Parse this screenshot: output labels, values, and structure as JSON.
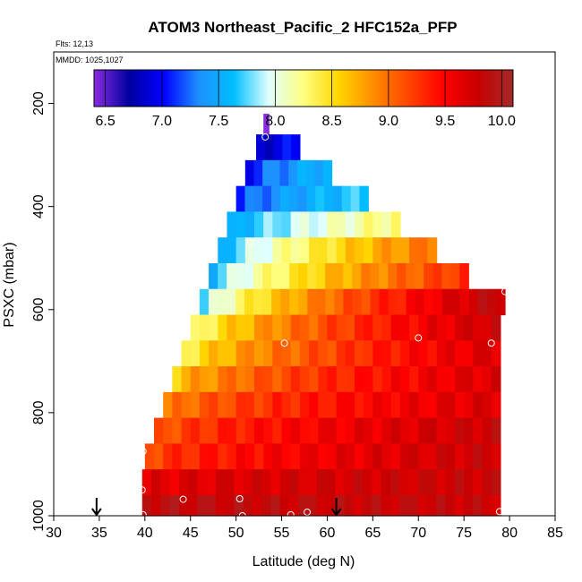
{
  "chart_data": {
    "type": "heatmap",
    "title": "ATOM3 Northeast_Pacific_2 HFC152a_PFP",
    "flights_label": "Flts: 12,13",
    "mmdd_label": "MMDD: 1025,1027",
    "xlabel": "Latitude (deg N)",
    "ylabel": "PSXC (mbar)",
    "xlim": [
      30,
      85
    ],
    "ylim": [
      1000,
      100
    ],
    "x_ticks": [
      30,
      35,
      40,
      45,
      50,
      55,
      60,
      65,
      70,
      75,
      80,
      85
    ],
    "y_ticks": [
      200,
      400,
      600,
      800,
      1000
    ],
    "colorbar": {
      "range": [
        6.4,
        10.1
      ],
      "ticks": [
        6.5,
        7.0,
        7.5,
        8.0,
        8.5,
        9.0,
        9.5,
        10.0
      ],
      "tick_labels": [
        "6.5",
        "7.0",
        "7.5",
        "8.0",
        "8.5",
        "9.0",
        "9.5",
        "10.0"
      ],
      "stops": [
        "#8b2be2",
        "#0000a0",
        "#0000ff",
        "#1e90ff",
        "#00bfff",
        "#e0ffff",
        "#ffff80",
        "#ffd700",
        "#ff8c00",
        "#ff4500",
        "#ff0000",
        "#c80000",
        "#a52a2a"
      ]
    },
    "rows": [
      {
        "p_top": 220,
        "p_bot": 260,
        "lat_start": 53.0,
        "lat_end": 53.6,
        "v_start": 6.4,
        "v_end": 6.4
      },
      {
        "p_top": 260,
        "p_bot": 310,
        "lat_start": 52.2,
        "lat_end": 57.0,
        "v_start": 6.8,
        "v_end": 7.0
      },
      {
        "p_top": 310,
        "p_bot": 360,
        "lat_start": 51.0,
        "lat_end": 60.5,
        "v_start": 6.9,
        "v_end": 7.6
      },
      {
        "p_top": 360,
        "p_bot": 410,
        "lat_start": 50.0,
        "lat_end": 64.5,
        "v_start": 7.0,
        "v_end": 7.7
      },
      {
        "p_top": 410,
        "p_bot": 460,
        "lat_start": 49.0,
        "lat_end": 68.0,
        "v_start": 7.3,
        "v_end": 8.3
      },
      {
        "p_top": 460,
        "p_bot": 510,
        "lat_start": 48.0,
        "lat_end": 72.0,
        "v_start": 7.3,
        "v_end": 9.0
      },
      {
        "p_top": 510,
        "p_bot": 560,
        "lat_start": 47.0,
        "lat_end": 75.5,
        "v_start": 7.4,
        "v_end": 9.3
      },
      {
        "p_top": 560,
        "p_bot": 610,
        "lat_start": 46.0,
        "lat_end": 79.5,
        "v_start": 7.5,
        "v_end": 9.9
      },
      {
        "p_top": 610,
        "p_bot": 660,
        "lat_start": 45.0,
        "lat_end": 79.0,
        "v_start": 8.0,
        "v_end": 9.8
      },
      {
        "p_top": 660,
        "p_bot": 710,
        "lat_start": 44.0,
        "lat_end": 79.0,
        "v_start": 8.2,
        "v_end": 9.7
      },
      {
        "p_top": 710,
        "p_bot": 760,
        "lat_start": 43.0,
        "lat_end": 79.0,
        "v_start": 8.5,
        "v_end": 9.7
      },
      {
        "p_top": 760,
        "p_bot": 810,
        "lat_start": 42.0,
        "lat_end": 79.0,
        "v_start": 8.8,
        "v_end": 9.7
      },
      {
        "p_top": 810,
        "p_bot": 860,
        "lat_start": 41.0,
        "lat_end": 79.0,
        "v_start": 9.0,
        "v_end": 9.8
      },
      {
        "p_top": 860,
        "p_bot": 910,
        "lat_start": 40.0,
        "lat_end": 79.0,
        "v_start": 9.1,
        "v_end": 9.8
      },
      {
        "p_top": 910,
        "p_bot": 960,
        "lat_start": 39.7,
        "lat_end": 79.0,
        "v_start": 9.6,
        "v_end": 9.8
      },
      {
        "p_top": 960,
        "p_bot": 1000,
        "lat_start": 39.7,
        "lat_end": 79.0,
        "v_start": 9.9,
        "v_end": 9.8
      }
    ],
    "samples": [
      {
        "lat": 53.2,
        "p": 265
      },
      {
        "lat": 51.6,
        "p": 470
      },
      {
        "lat": 55.3,
        "p": 665
      },
      {
        "lat": 70.0,
        "p": 655
      },
      {
        "lat": 78.0,
        "p": 665
      },
      {
        "lat": 79.5,
        "p": 565
      },
      {
        "lat": 39.8,
        "p": 875
      },
      {
        "lat": 39.7,
        "p": 950
      },
      {
        "lat": 44.2,
        "p": 968
      },
      {
        "lat": 50.4,
        "p": 967
      },
      {
        "lat": 39.8,
        "p": 998
      },
      {
        "lat": 50.7,
        "p": 1000
      },
      {
        "lat": 56.0,
        "p": 998
      },
      {
        "lat": 57.8,
        "p": 993
      },
      {
        "lat": 78.9,
        "p": 992
      }
    ],
    "arrows": [
      34.7,
      61.0
    ],
    "grid": false,
    "legend": "colorbar top"
  }
}
